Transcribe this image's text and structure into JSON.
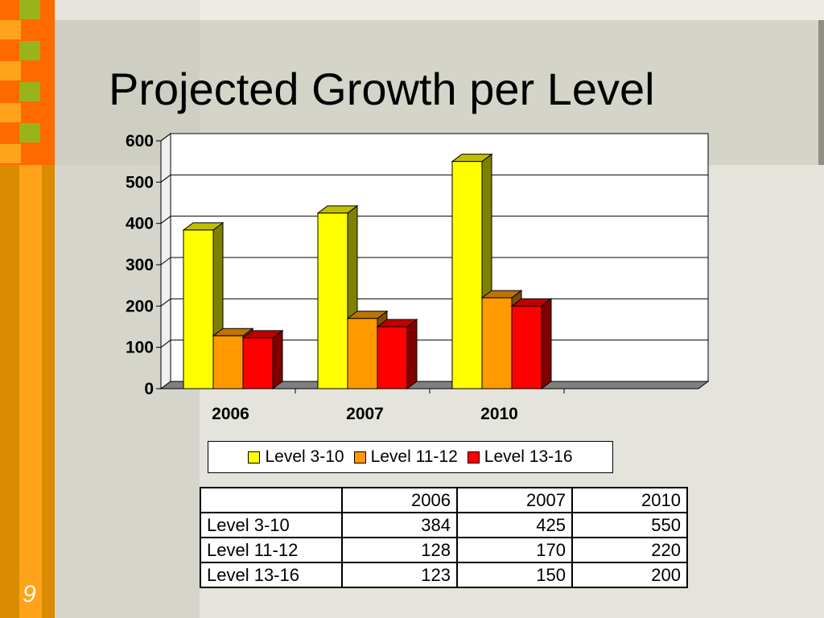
{
  "slide": {
    "title": "Projected Growth per Level",
    "page_number": "9"
  },
  "colors": {
    "level_3_10": "#ffff00",
    "level_11_12": "#ff9900",
    "level_13_16": "#ff0000"
  },
  "chart_data": {
    "type": "bar",
    "style": "3d-clustered-column",
    "categories": [
      "2006",
      "2007",
      "2010"
    ],
    "series": [
      {
        "name": "Level 3-10",
        "values": [
          384,
          425,
          550
        ]
      },
      {
        "name": "Level 11-12",
        "values": [
          128,
          170,
          220
        ]
      },
      {
        "name": "Level 13-16",
        "values": [
          123,
          150,
          200
        ]
      }
    ],
    "ylim": [
      0,
      600
    ],
    "yticks": [
      "0",
      "100",
      "200",
      "300",
      "400",
      "500",
      "600"
    ],
    "grid": true,
    "legend": "bottom"
  },
  "table": {
    "headers": [
      "",
      "2006",
      "2007",
      "2010"
    ],
    "rows": [
      [
        "Level 3-10",
        "384",
        "425",
        "550"
      ],
      [
        "Level 11-12",
        "128",
        "170",
        "220"
      ],
      [
        "Level 13-16",
        "123",
        "150",
        "200"
      ]
    ]
  }
}
